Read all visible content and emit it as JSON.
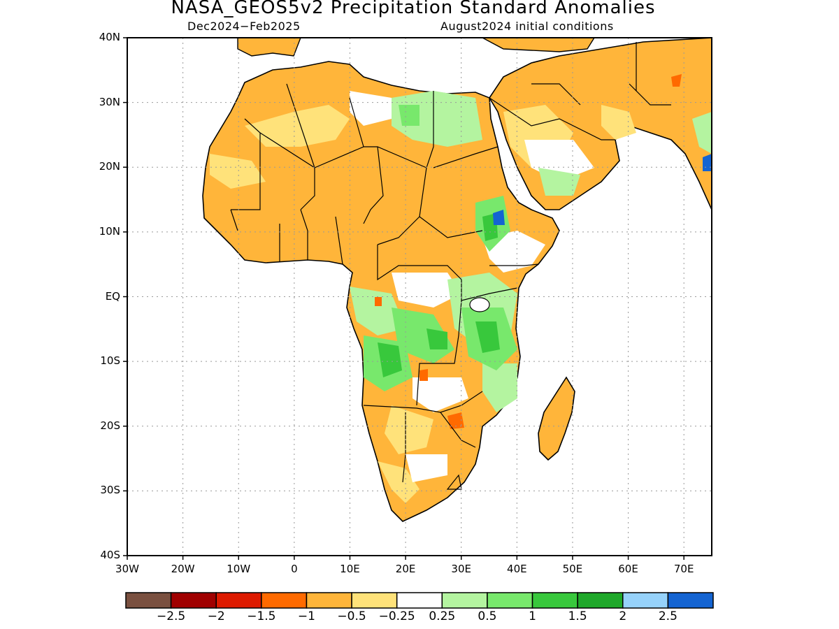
{
  "title": "NASA_GEOS5v2 Precipitation Standard Anomalies",
  "subtitle_left": "Dec2024−Feb2025",
  "subtitle_right": "August2024 initial conditions",
  "lat_labels": [
    "40N",
    "30N",
    "20N",
    "10N",
    "EQ",
    "10S",
    "20S",
    "30S",
    "40S"
  ],
  "lon_labels": [
    "30W",
    "20W",
    "10W",
    "0",
    "10E",
    "20E",
    "30E",
    "40E",
    "50E",
    "60E",
    "70E"
  ],
  "map_extent": {
    "lon": [
      -30,
      75
    ],
    "lat": [
      -40,
      40
    ]
  },
  "colorbar": {
    "colors": [
      "#7a5040",
      "#a00000",
      "#dd1a00",
      "#ff6a00",
      "#ffb53a",
      "#ffe27a",
      "#ffffff",
      "#b4f4a0",
      "#78e86c",
      "#38c83c",
      "#1fa82a",
      "#96d2fa",
      "#1464d2"
    ],
    "labels": [
      "−2.5",
      "−2",
      "−1.5",
      "−1",
      "−0.5",
      "−0.25",
      "0.25",
      "0.5",
      "1",
      "1.5",
      "2",
      "2.5"
    ]
  },
  "fill_colors": {
    "land_dry": "#ffb53a",
    "land_slightly_dry": "#ffe27a",
    "wet_light": "#b4f4a0",
    "wet": "#78e86c",
    "wet_strong": "#38c83c",
    "very_dry": "#ff6a00",
    "very_wet": "#1464d2"
  }
}
